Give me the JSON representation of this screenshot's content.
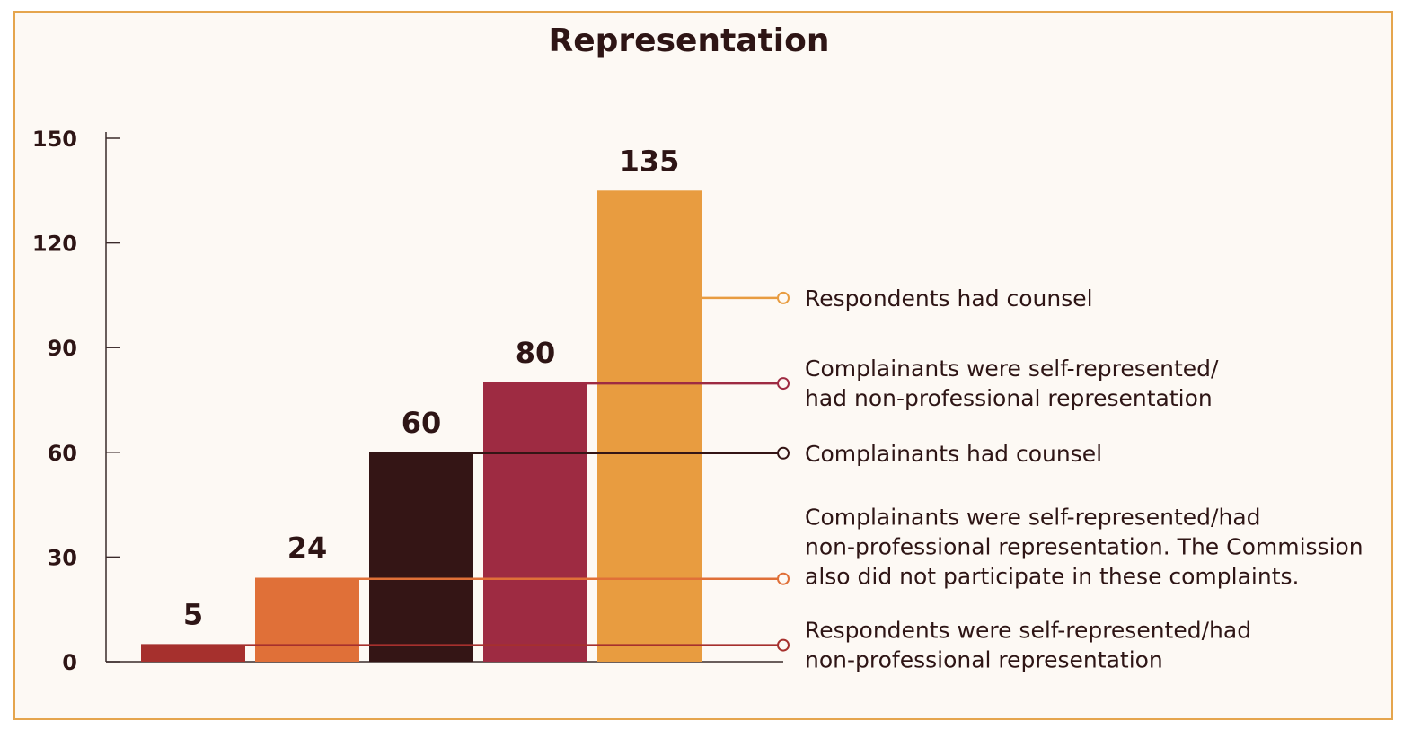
{
  "chart_data": {
    "type": "bar",
    "title": "Representation",
    "ylim": [
      0,
      150
    ],
    "yticks": [
      0,
      30,
      60,
      90,
      120,
      150
    ],
    "ytick_labels": [
      "0",
      "30",
      "60",
      "90",
      "120",
      "150"
    ],
    "grid": false,
    "series": [
      {
        "name_lines": [
          "Respondents were self-represented/had",
          "non-professional representation"
        ],
        "value": 5,
        "value_label": "5",
        "color": "#a6302d"
      },
      {
        "name_lines": [
          "Complainants were self-represented/had",
          "non-professional representation. The Commission",
          "also did not participate in these complaints."
        ],
        "value": 24,
        "value_label": "24",
        "color": "#e07038"
      },
      {
        "name_lines": [
          "Complainants had counsel"
        ],
        "value": 60,
        "value_label": "60",
        "color": "#341515"
      },
      {
        "name_lines": [
          "Complainants were self-represented/",
          "had non-professional representation"
        ],
        "value": 80,
        "value_label": "80",
        "color": "#9e2b42"
      },
      {
        "name_lines": [
          "Respondents had counsel"
        ],
        "value": 135,
        "value_label": "135",
        "color": "#e89c40"
      }
    ],
    "legend_placement": "right"
  },
  "colors": {
    "frame_border": "#e5a54d",
    "background": "#fdf9f4",
    "text": "#2e1515",
    "axis": "#3a2a2a"
  }
}
